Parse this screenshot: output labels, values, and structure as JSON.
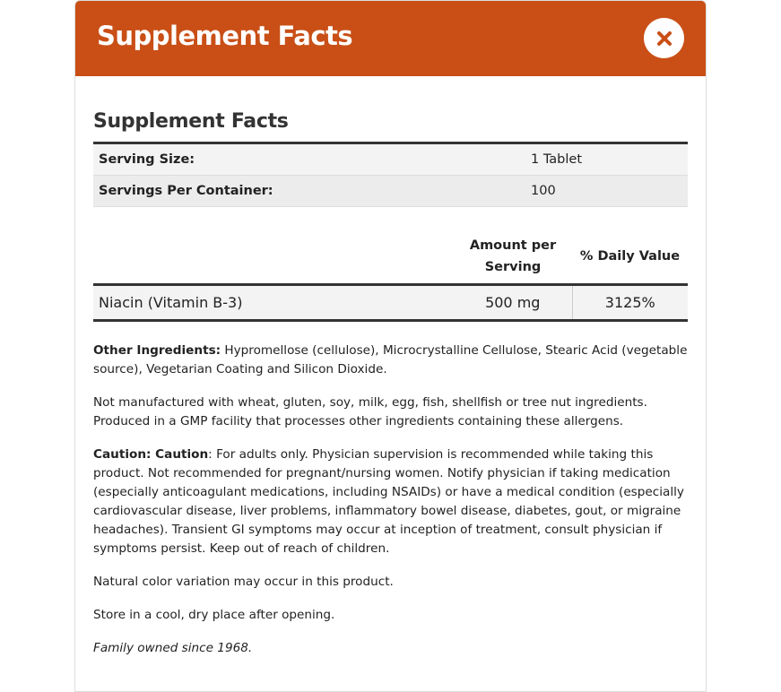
{
  "modal": {
    "title": "Supplement Facts",
    "close_icon": "close-x-icon",
    "accent_color": "#c94f16"
  },
  "facts": {
    "heading": "Supplement Facts",
    "serving_rows": [
      {
        "label": "Serving Size:",
        "value": "1 Tablet"
      },
      {
        "label": "Servings Per Container:",
        "value": "100"
      }
    ],
    "columns": {
      "amount_line1": "Amount per",
      "amount_line2": "Serving",
      "daily_value": "% Daily Value"
    },
    "nutrients": [
      {
        "name": "Niacin (Vitamin B-3)",
        "amount": "500 mg",
        "dv": "3125%"
      }
    ]
  },
  "notes": {
    "other_label": "Other Ingredients:",
    "other_text": " Hypromellose (cellulose), Microcrystalline Cellulose, Stearic Acid (vegetable source), Vegetarian Coating and Silicon Dioxide.",
    "allergen": "Not manufactured with wheat, gluten, soy, milk, egg, fish, shellfish or tree nut ingredients. Produced in a GMP facility that processes other ingredients containing these allergens.",
    "caution_label": "Caution: Caution",
    "caution_text": ": For adults only. Physician supervision is recommended while taking this product. Not recommended for pregnant/nursing women. Notify physician if taking medication (especially anticoagulant medications, including NSAIDs) or have a medical condition (especially cardiovascular disease, liver problems, inflammatory bowel disease, diabetes, gout, or migraine headaches). Transient GI symptoms may occur at inception of treatment, consult physician if symptoms persist. Keep out of reach of children.",
    "color": "Natural color variation may occur in this product.",
    "storage": "Store in a cool, dry place after opening.",
    "family": "Family owned since 1968."
  }
}
